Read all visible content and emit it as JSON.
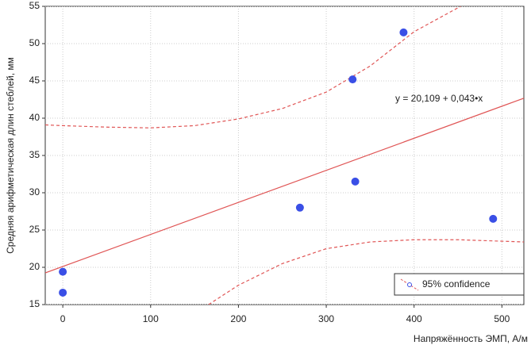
{
  "chart_data": {
    "type": "scatter",
    "x": [
      0,
      0,
      270,
      330,
      333,
      388,
      490
    ],
    "y": [
      19.4,
      16.6,
      28,
      45.2,
      31.5,
      51.5,
      26.5
    ],
    "point_color": "#3a4fe6",
    "xlabel": "Напряжённость ЭМП, А/м",
    "ylabel": "Средняя арифметическая длин стеблей, мм",
    "annotation": "y = 20,109 + 0,043•x",
    "fit": {
      "color": "#e05555",
      "x": [
        -20,
        525
      ],
      "y": [
        19.25,
        42.68
      ]
    },
    "confidence_upper": {
      "x": [
        -20,
        0,
        50,
        100,
        150,
        200,
        250,
        300,
        350,
        400,
        453
      ],
      "y": [
        39.1,
        39,
        38.8,
        38.7,
        39,
        39.9,
        41.3,
        43.5,
        47,
        51.6,
        55
      ]
    },
    "confidence_lower": {
      "x": [
        166,
        200,
        250,
        300,
        350,
        400,
        450,
        500,
        525
      ],
      "y": [
        15,
        17.6,
        20.5,
        22.5,
        23.4,
        23.7,
        23.7,
        23.5,
        23.4
      ]
    },
    "legend": {
      "label": "95% confidence",
      "corner": "lower right"
    },
    "xlim": [
      -20,
      525
    ],
    "ylim": [
      15,
      55
    ],
    "xticks": [
      0,
      100,
      200,
      300,
      400,
      500
    ],
    "yticks": [
      15,
      20,
      25,
      30,
      35,
      40,
      45,
      50,
      55
    ],
    "grid": true
  }
}
